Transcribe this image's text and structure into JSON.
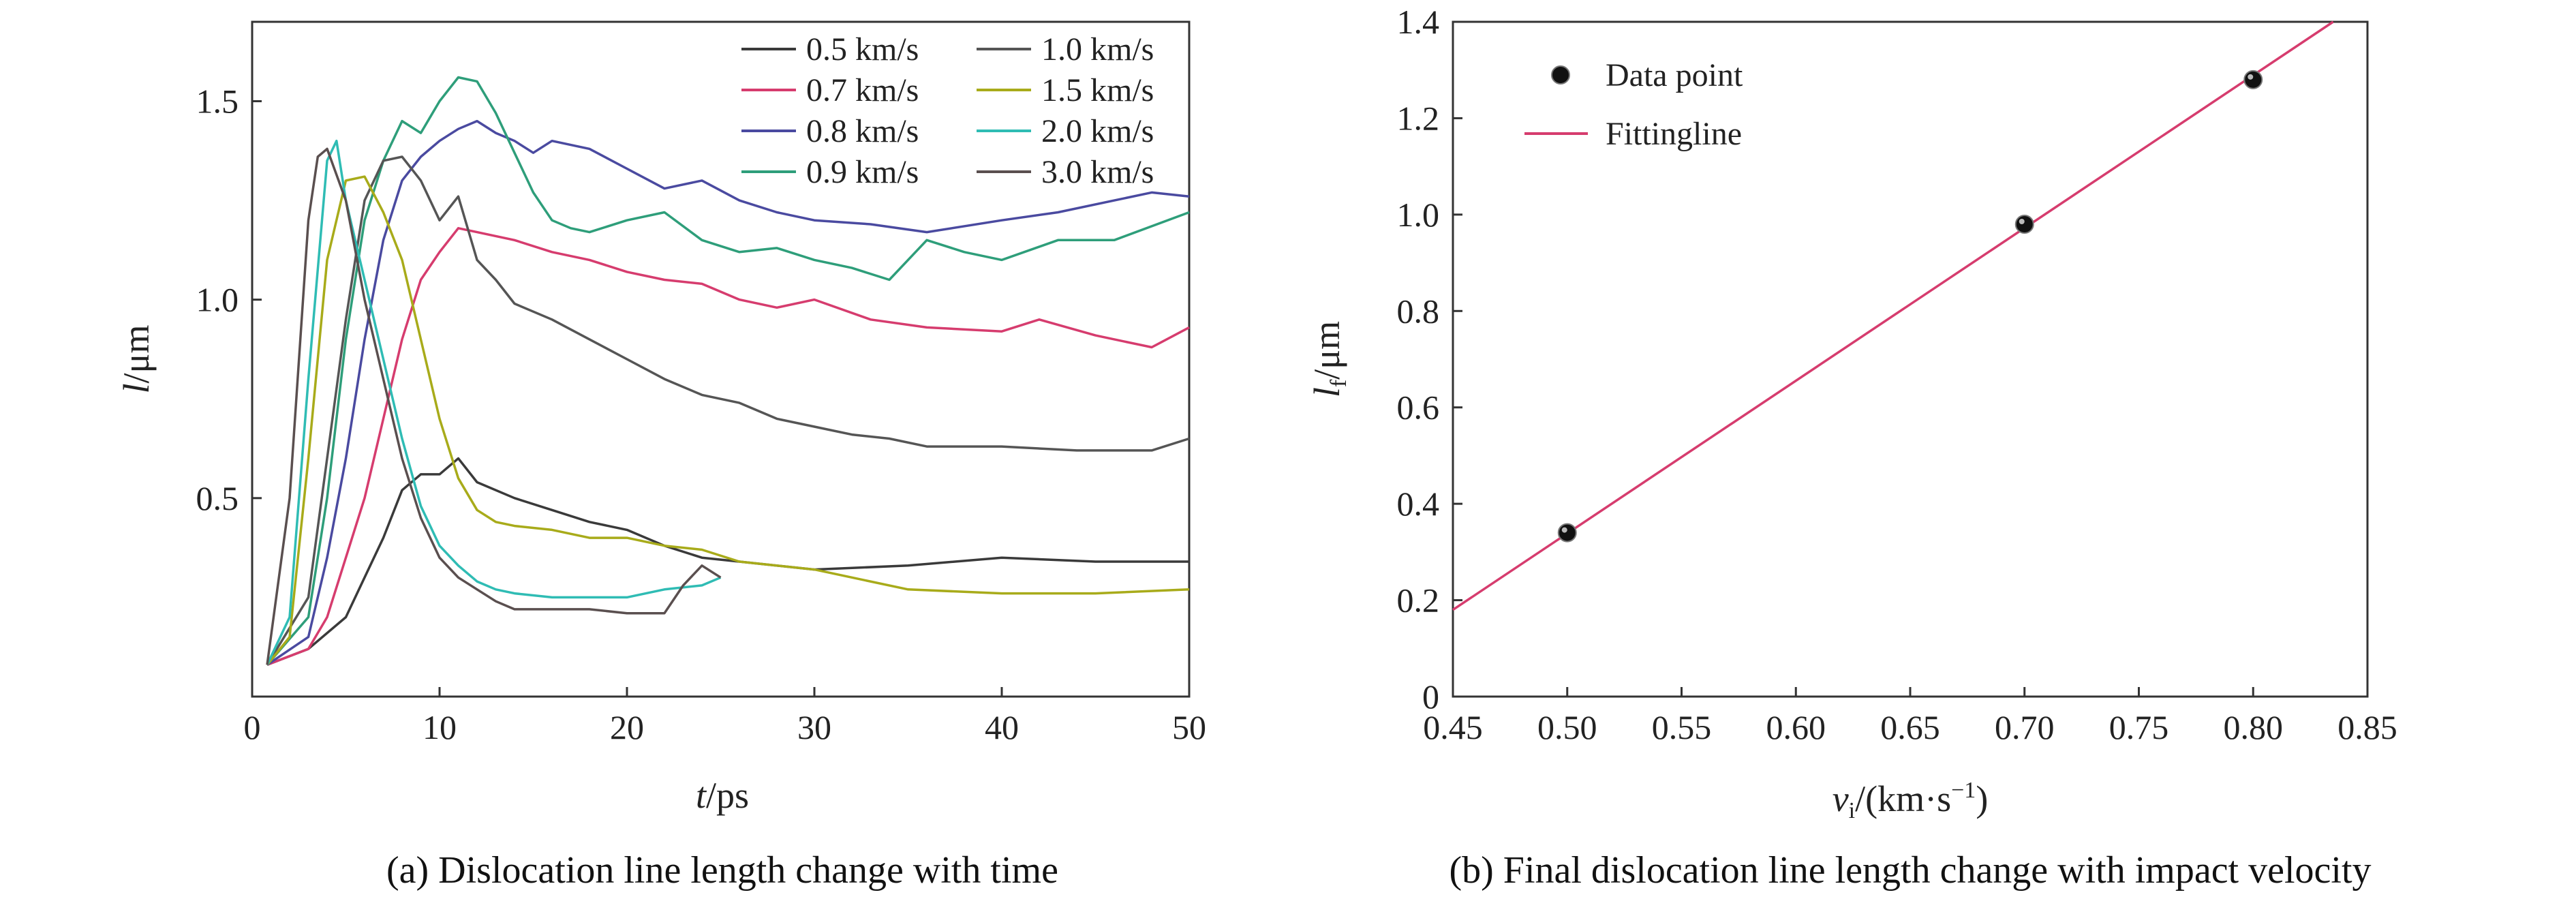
{
  "chart_data": [
    {
      "type": "line",
      "caption": "(a) Dislocation line length change with time",
      "xlabel_italic": "t",
      "xlabel_rest": "/ps",
      "ylabel_italic": "l",
      "ylabel_rest": "/μm",
      "xlim": [
        0,
        50
      ],
      "ylim": [
        0,
        1.7
      ],
      "xticks": [
        0,
        10,
        20,
        30,
        40,
        50
      ],
      "yticks": [
        0.5,
        1.0,
        1.5
      ],
      "xtick_labels": [
        "0",
        "10",
        "20",
        "30",
        "40",
        "50"
      ],
      "ytick_labels": [
        "0.5",
        "1.0",
        "1.5"
      ],
      "legend_placement": "top-right",
      "series": [
        {
          "name": "0.5 km/s",
          "color": "#3a3a3a",
          "x": [
            0.8,
            3,
            5,
            6,
            7,
            8,
            9,
            10,
            11,
            12,
            14,
            16,
            18,
            20,
            22,
            24,
            26,
            30,
            35,
            40,
            45,
            50
          ],
          "y": [
            0.08,
            0.12,
            0.2,
            0.3,
            0.4,
            0.52,
            0.56,
            0.56,
            0.6,
            0.54,
            0.5,
            0.47,
            0.44,
            0.42,
            0.38,
            0.35,
            0.34,
            0.32,
            0.33,
            0.35,
            0.34,
            0.34
          ]
        },
        {
          "name": "0.7 km/s",
          "color": "#d63c6e",
          "x": [
            0.8,
            3,
            4,
            5,
            6,
            7,
            8,
            9,
            10,
            11,
            12,
            14,
            16,
            18,
            20,
            22,
            24,
            26,
            28,
            30,
            33,
            36,
            40,
            42,
            45,
            48,
            50
          ],
          "y": [
            0.08,
            0.12,
            0.2,
            0.35,
            0.5,
            0.7,
            0.9,
            1.05,
            1.12,
            1.18,
            1.17,
            1.15,
            1.12,
            1.1,
            1.07,
            1.05,
            1.04,
            1.0,
            0.98,
            1.0,
            0.95,
            0.93,
            0.92,
            0.95,
            0.91,
            0.88,
            0.93
          ]
        },
        {
          "name": "0.8 km/s",
          "color": "#4a4aa0",
          "x": [
            0.8,
            3,
            4,
            5,
            6,
            7,
            8,
            9,
            10,
            11,
            12,
            13,
            14,
            15,
            16,
            18,
            20,
            22,
            24,
            26,
            28,
            30,
            33,
            36,
            40,
            43,
            46,
            48,
            50
          ],
          "y": [
            0.08,
            0.15,
            0.35,
            0.6,
            0.9,
            1.15,
            1.3,
            1.36,
            1.4,
            1.43,
            1.45,
            1.42,
            1.4,
            1.37,
            1.4,
            1.38,
            1.33,
            1.28,
            1.3,
            1.25,
            1.22,
            1.2,
            1.19,
            1.17,
            1.2,
            1.22,
            1.25,
            1.27,
            1.26
          ]
        },
        {
          "name": "0.9 km/s",
          "color": "#2e9e7a",
          "x": [
            0.8,
            3,
            4,
            5,
            6,
            7,
            8,
            9,
            10,
            11,
            12,
            13,
            14,
            15,
            16,
            17,
            18,
            20,
            22,
            24,
            26,
            28,
            30,
            32,
            34,
            36,
            38,
            40,
            43,
            46,
            50
          ],
          "y": [
            0.08,
            0.2,
            0.5,
            0.9,
            1.2,
            1.35,
            1.45,
            1.42,
            1.5,
            1.56,
            1.55,
            1.47,
            1.37,
            1.27,
            1.2,
            1.18,
            1.17,
            1.2,
            1.22,
            1.15,
            1.12,
            1.13,
            1.1,
            1.08,
            1.05,
            1.15,
            1.12,
            1.1,
            1.15,
            1.15,
            1.22
          ]
        },
        {
          "name": "1.0 km/s",
          "color": "#555555",
          "x": [
            0.8,
            3,
            4,
            5,
            6,
            7,
            8,
            9,
            10,
            11,
            12,
            13,
            14,
            16,
            18,
            20,
            22,
            24,
            26,
            28,
            30,
            32,
            34,
            36,
            40,
            44,
            48,
            50
          ],
          "y": [
            0.08,
            0.25,
            0.6,
            0.95,
            1.25,
            1.35,
            1.36,
            1.3,
            1.2,
            1.26,
            1.1,
            1.05,
            0.99,
            0.95,
            0.9,
            0.85,
            0.8,
            0.76,
            0.74,
            0.7,
            0.68,
            0.66,
            0.65,
            0.63,
            0.63,
            0.62,
            0.62,
            0.65
          ]
        },
        {
          "name": "1.5 km/s",
          "color": "#a8ab1a",
          "x": [
            0.8,
            2,
            3,
            4,
            5,
            6,
            7,
            8,
            9,
            10,
            11,
            12,
            13,
            14,
            16,
            18,
            20,
            22,
            24,
            26,
            30,
            35,
            40,
            45,
            50
          ],
          "y": [
            0.08,
            0.15,
            0.6,
            1.1,
            1.3,
            1.31,
            1.22,
            1.1,
            0.9,
            0.7,
            0.55,
            0.47,
            0.44,
            0.43,
            0.42,
            0.4,
            0.4,
            0.38,
            0.37,
            0.34,
            0.32,
            0.27,
            0.26,
            0.26,
            0.27
          ]
        },
        {
          "name": "2.0 km/s",
          "color": "#2fbcb4",
          "x": [
            0.8,
            2,
            3,
            4,
            4.5,
            5,
            6,
            7,
            8,
            9,
            10,
            11,
            12,
            13,
            14,
            16,
            18,
            20,
            22,
            24,
            25
          ],
          "y": [
            0.08,
            0.2,
            0.8,
            1.35,
            1.4,
            1.25,
            1.05,
            0.85,
            0.65,
            0.48,
            0.38,
            0.33,
            0.29,
            0.27,
            0.26,
            0.25,
            0.25,
            0.25,
            0.27,
            0.28,
            0.3
          ]
        },
        {
          "name": "3.0 km/s",
          "color": "#5a4f4f",
          "x": [
            0.8,
            2,
            3,
            3.5,
            4,
            5,
            6,
            7,
            8,
            9,
            10,
            11,
            12,
            13,
            14,
            16,
            18,
            20,
            22,
            23,
            24,
            25
          ],
          "y": [
            0.08,
            0.5,
            1.2,
            1.36,
            1.38,
            1.25,
            1.0,
            0.8,
            0.6,
            0.45,
            0.35,
            0.3,
            0.27,
            0.24,
            0.22,
            0.22,
            0.22,
            0.21,
            0.21,
            0.28,
            0.33,
            0.3
          ]
        }
      ]
    },
    {
      "type": "scatter",
      "caption": "(b) Final dislocation line length change with impact velocity",
      "xlabel_italic": "v",
      "xlabel_sub": "i",
      "xlabel_rest": "/(km·s",
      "xlabel_sup": "−1",
      "xlabel_end": ")",
      "ylabel_italic": "l",
      "ylabel_sub": "f",
      "ylabel_rest": "/μm",
      "xlim": [
        0.45,
        0.85
      ],
      "ylim": [
        0,
        1.4
      ],
      "xticks": [
        0.45,
        0.5,
        0.55,
        0.6,
        0.65,
        0.7,
        0.75,
        0.8,
        0.85
      ],
      "yticks": [
        0,
        0.2,
        0.4,
        0.6,
        0.8,
        1.0,
        1.2,
        1.4
      ],
      "xtick_labels": [
        "0.45",
        "0.50",
        "0.55",
        "0.60",
        "0.65",
        "0.70",
        "0.75",
        "0.80",
        "0.85"
      ],
      "ytick_labels": [
        "0",
        "0.2",
        "0.4",
        "0.6",
        "0.8",
        "1.0",
        "1.2",
        "1.4"
      ],
      "legend_placement": "top-left",
      "series": [
        {
          "name": "Data point",
          "color": "#111111",
          "x": [
            0.5,
            0.7,
            0.8
          ],
          "y": [
            0.34,
            0.98,
            1.28
          ]
        },
        {
          "name": "Fittingline",
          "color": "#d63c6e",
          "x": [
            0.45,
            0.835
          ],
          "y": [
            0.18,
            1.4
          ]
        }
      ]
    }
  ]
}
